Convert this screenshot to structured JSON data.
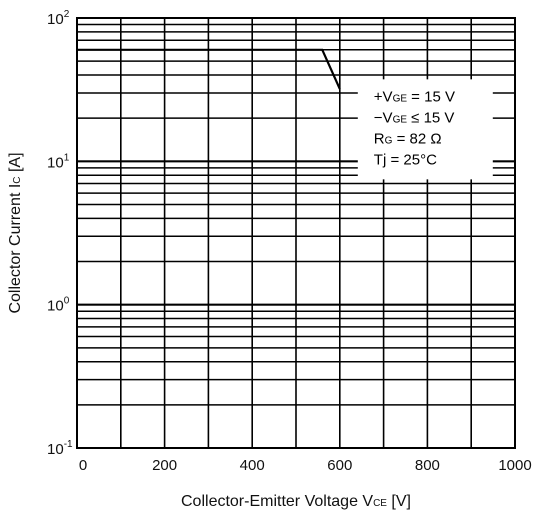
{
  "chart_data": {
    "type": "line",
    "title": "",
    "xlabel": "Collector-Emitter Voltage V",
    "xlabel_sub": "CE",
    "xlabel_unit": " [V]",
    "ylabel": "Collector Current I",
    "ylabel_sub": "C",
    "ylabel_unit": " [A]",
    "xlim": [
      0,
      1000
    ],
    "ylim": [
      0.1,
      100
    ],
    "yscale": "log",
    "grid": true,
    "x_ticks": [
      {
        "value": 0,
        "label": "0"
      },
      {
        "value": 200,
        "label": "200"
      },
      {
        "value": 400,
        "label": "400"
      },
      {
        "value": 600,
        "label": "600"
      },
      {
        "value": 800,
        "label": "800"
      },
      {
        "value": 1000,
        "label": "1000"
      }
    ],
    "y_ticks": [
      {
        "value": 0.1,
        "base": "10",
        "exp": "-1"
      },
      {
        "value": 1,
        "base": "10",
        "exp": "0"
      },
      {
        "value": 10,
        "base": "10",
        "exp": "1"
      },
      {
        "value": 100,
        "base": "10",
        "exp": "2"
      }
    ],
    "series": [
      {
        "x": [
          0,
          560,
          600
        ],
        "y": [
          60,
          60,
          32
        ]
      }
    ],
    "annotations": [
      {
        "lines": [
          {
            "main": "+V",
            "sub": "GE",
            "rest": " = 15 V"
          },
          {
            "main": "−V",
            "sub": "GE",
            "rest": " ≤ 15 V"
          },
          {
            "main": "R",
            "sub": "G",
            "rest": "  =  82 Ω"
          },
          {
            "main": "Tj",
            "sub": "",
            "rest": "  =  25°C"
          }
        ]
      }
    ]
  }
}
